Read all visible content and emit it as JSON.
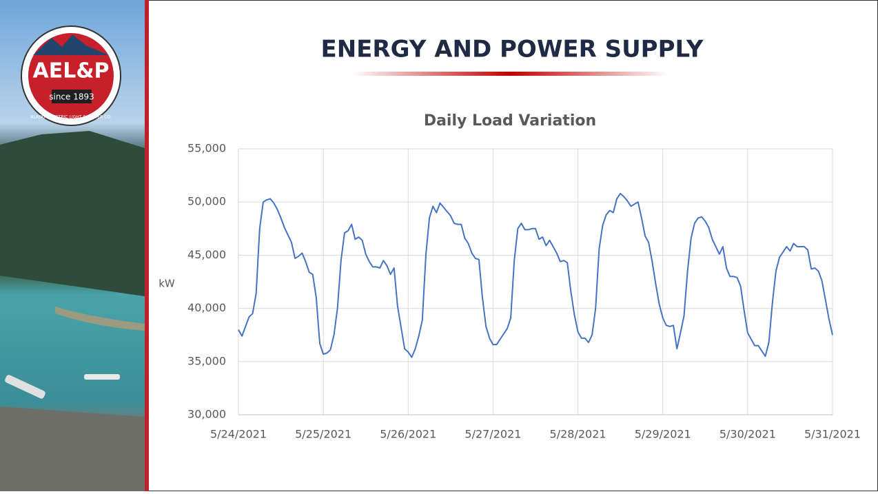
{
  "slide_title": "ENERGY AND POWER SUPPLY",
  "logo": {
    "name": "AEL&P",
    "since": "since 1893",
    "company": "ALASKA ELECTRIC LIGHT & POWER CO."
  },
  "chart_data": {
    "type": "line",
    "title": "Daily Load Variation",
    "y_label": "kW",
    "categories": [
      "5/24/2021",
      null,
      null,
      null,
      null,
      null,
      null,
      null,
      null,
      null,
      null,
      null,
      null,
      null,
      null,
      null,
      null,
      null,
      null,
      null,
      null,
      null,
      null,
      null,
      "5/25/2021",
      null,
      null,
      null,
      null,
      null,
      null,
      null,
      null,
      null,
      null,
      null,
      null,
      null,
      null,
      null,
      null,
      null,
      null,
      null,
      null,
      null,
      null,
      null,
      "5/26/2021",
      null,
      null,
      null,
      null,
      null,
      null,
      null,
      null,
      null,
      null,
      null,
      null,
      null,
      null,
      null,
      null,
      null,
      null,
      null,
      null,
      null,
      null,
      null,
      "5/27/2021",
      null,
      null,
      null,
      null,
      null,
      null,
      null,
      null,
      null,
      null,
      null,
      null,
      null,
      null,
      null,
      null,
      null,
      null,
      null,
      null,
      null,
      null,
      null,
      "5/28/2021",
      null,
      null,
      null,
      null,
      null,
      null,
      null,
      null,
      null,
      null,
      null,
      null,
      null,
      null,
      null,
      null,
      null,
      null,
      null,
      null,
      null,
      null,
      null,
      "5/29/2021",
      null,
      null,
      null,
      null,
      null,
      null,
      null,
      null,
      null,
      null,
      null,
      null,
      null,
      null,
      null,
      null,
      null,
      null,
      null,
      null,
      null,
      null,
      null,
      "5/30/2021",
      null,
      null,
      null,
      null,
      null,
      null,
      null,
      null,
      null,
      null,
      null,
      null,
      null,
      null,
      null,
      null,
      null,
      null,
      null,
      null,
      null,
      null,
      null,
      "5/31/2021"
    ],
    "series": [
      {
        "name": "kW",
        "color": "#4472c4",
        "values": [
          38000,
          37400,
          38300,
          39200,
          39500,
          41400,
          47500,
          50000,
          50200,
          50300,
          49900,
          49300,
          48500,
          47600,
          46900,
          46200,
          44700,
          44900,
          45200,
          44400,
          43400,
          43200,
          41000,
          36700,
          35700,
          35800,
          36100,
          37500,
          40000,
          44500,
          47100,
          47300,
          47900,
          46500,
          46700,
          46400,
          45100,
          44400,
          43900,
          43900,
          43800,
          44500,
          44000,
          43200,
          43800,
          40200,
          38200,
          36200,
          35900,
          35400,
          36200,
          37400,
          38900,
          45000,
          48500,
          49600,
          49000,
          49900,
          49500,
          49100,
          48700,
          48000,
          47900,
          47900,
          46600,
          46100,
          45200,
          44700,
          44600,
          41000,
          38300,
          37200,
          36600,
          36600,
          37100,
          37600,
          38100,
          39100,
          44500,
          47500,
          48000,
          47400,
          47400,
          47500,
          47500,
          46500,
          46700,
          45900,
          46400,
          45800,
          45200,
          44400,
          44500,
          44300,
          41600,
          39400,
          37800,
          37200,
          37200,
          36800,
          37500,
          40000,
          45600,
          47800,
          48800,
          49200,
          49000,
          50300,
          50800,
          50500,
          50100,
          49600,
          49800,
          50000,
          48500,
          46800,
          46200,
          44400,
          42300,
          40400,
          39100,
          38400,
          38300,
          38400,
          36200,
          37700,
          39300,
          43500,
          46600,
          48000,
          48500,
          48600,
          48200,
          47600,
          46500,
          45800,
          45100,
          45800,
          43800,
          43000,
          43000,
          42900,
          42100,
          39800,
          37700,
          37100,
          36500,
          36500,
          36000,
          35500,
          36800,
          40500,
          43500,
          44800,
          45300,
          45800,
          45400,
          46100,
          45800,
          45800,
          45800,
          45500,
          43700,
          43800,
          43500,
          42600,
          40800,
          39000,
          37500
        ]
      }
    ],
    "ylim": [
      30000,
      55000
    ],
    "yticks": [
      {
        "value": 30000,
        "label": "30,000"
      },
      {
        "value": 35000,
        "label": "35,000"
      },
      {
        "value": 40000,
        "label": "40,000"
      },
      {
        "value": 45000,
        "label": "45,000"
      },
      {
        "value": 50000,
        "label": "50,000"
      },
      {
        "value": 55000,
        "label": "55,000"
      }
    ],
    "grid": true
  }
}
